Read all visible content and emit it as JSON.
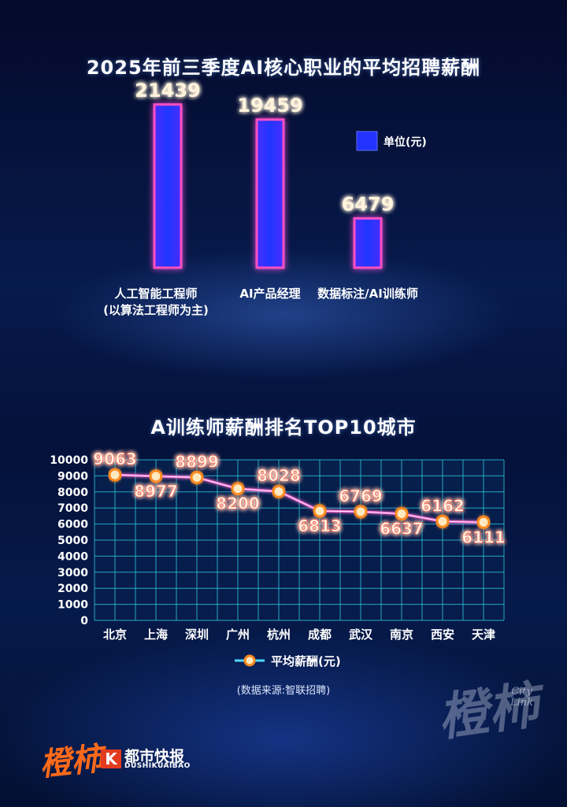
{
  "chart_data": [
    {
      "type": "bar",
      "title": "2025年前三季度AI核心职业的平均招聘薪酬",
      "categories": [
        [
          "人工智能工程师",
          "(以算法工程师为主)"
        ],
        [
          "AI产品经理"
        ],
        [
          "数据标注/AI训练师"
        ]
      ],
      "values": [
        21439,
        19459,
        6479
      ],
      "legend": "单位(元)",
      "legend_position": "right",
      "ylim": [
        0,
        24000
      ],
      "colors": {
        "bar_fill": "#2b3fff",
        "bar_glow": "#ff4fc0",
        "label": "#fff3dc"
      }
    },
    {
      "type": "line",
      "title": "A训练师薪酬排名TOP10城市",
      "categories": [
        "北京",
        "上海",
        "深圳",
        "广州",
        "杭州",
        "成都",
        "武汉",
        "南京",
        "西安",
        "天津"
      ],
      "series": [
        {
          "name": "平均薪酬(元)",
          "values": [
            9063,
            8977,
            8899,
            8200,
            8028,
            6813,
            6769,
            6637,
            6162,
            6111
          ]
        }
      ],
      "ylim": [
        0,
        10000
      ],
      "yticks": [
        0,
        1000,
        2000,
        3000,
        4000,
        5000,
        6000,
        7000,
        8000,
        9000,
        10000
      ],
      "grid": true,
      "legend_position": "bottom",
      "colors": {
        "line": "#ff6fd0",
        "point": "#ff8a1e",
        "grid": "#2fd7e8",
        "label_glow": "#ff3a1a"
      }
    }
  ],
  "source": "(数据来源:智联招聘)",
  "brand": {
    "left_logo": "橙柿",
    "k_mark": "K",
    "name": "都市快报",
    "name_sub": "DUSHIKUAIBAO",
    "right_logo": "橙柿",
    "right_logo_sub": [
      "City",
      "Link"
    ]
  }
}
